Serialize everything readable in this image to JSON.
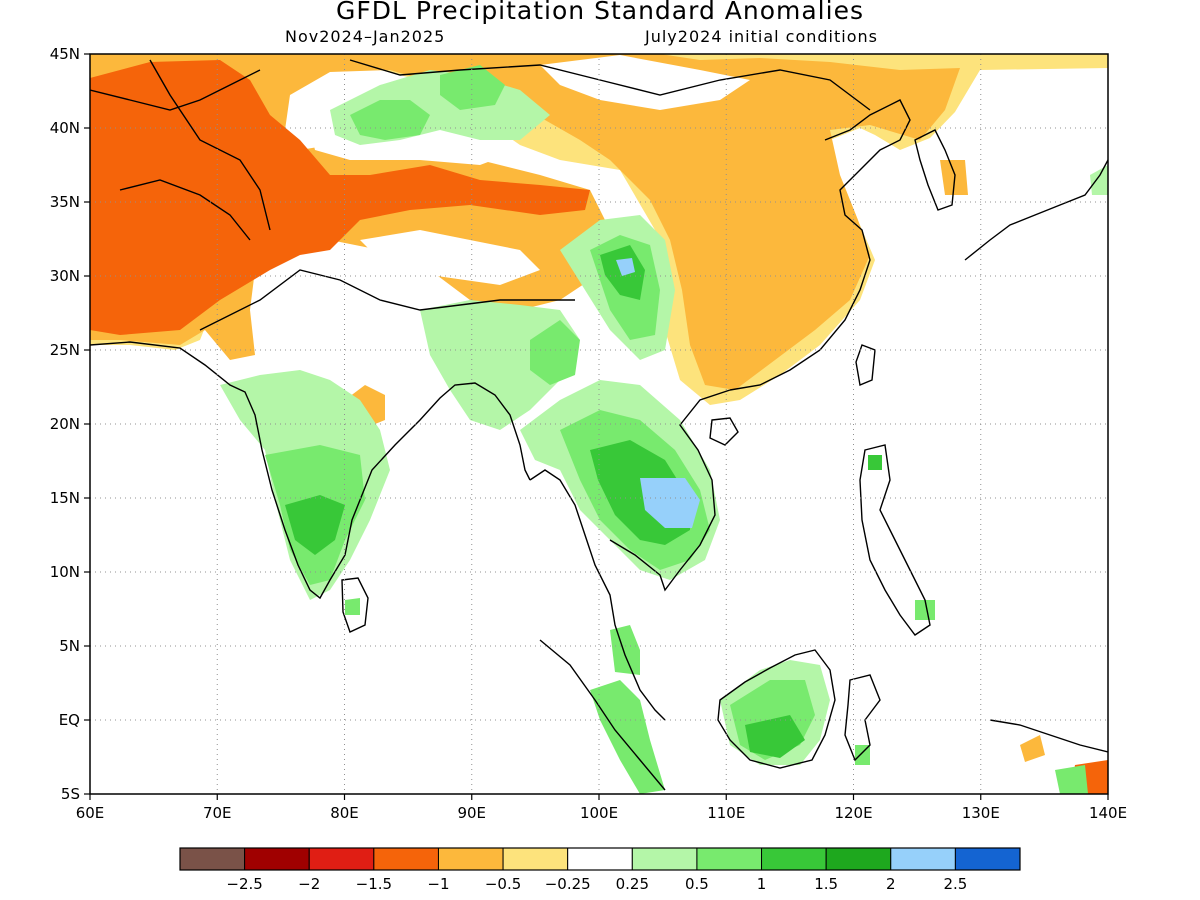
{
  "title": "GFDL Precipitation Standard Anomalies",
  "subtitle_left": "Nov2024–Jan2025",
  "subtitle_right": "July2024 initial conditions",
  "map": {
    "lon_range": [
      60,
      140
    ],
    "lat_range": [
      -5,
      45
    ],
    "x_ticks": [
      "60E",
      "70E",
      "80E",
      "90E",
      "100E",
      "110E",
      "120E",
      "130E",
      "140E"
    ],
    "y_ticks": [
      "45N",
      "40N",
      "35N",
      "30N",
      "25N",
      "20N",
      "15N",
      "10N",
      "5N",
      "EQ",
      "5S"
    ],
    "grid": "dotted"
  },
  "colorbar": {
    "colors": [
      "#7a5248",
      "#a00000",
      "#e01e14",
      "#f5640a",
      "#fcb83c",
      "#fde37c",
      "#ffffff",
      "#b4f6a8",
      "#78ea6e",
      "#38c838",
      "#1ea81e",
      "#96d0fa",
      "#1464d2"
    ],
    "labels": [
      "-2.5",
      "-2",
      "-1.5",
      "-1",
      "-0.5",
      "-0.25",
      "0.25",
      "0.5",
      "1",
      "1.5",
      "2",
      "2.5"
    ]
  },
  "colors": {
    "strong_negative": "#f5640a",
    "negative": "#fcb83c",
    "weak_negative": "#fde37c",
    "weak_positive": "#b4f6a8",
    "positive": "#78ea6e",
    "strong_positive": "#38c838",
    "very_strong_positive": "#96d0fa"
  }
}
